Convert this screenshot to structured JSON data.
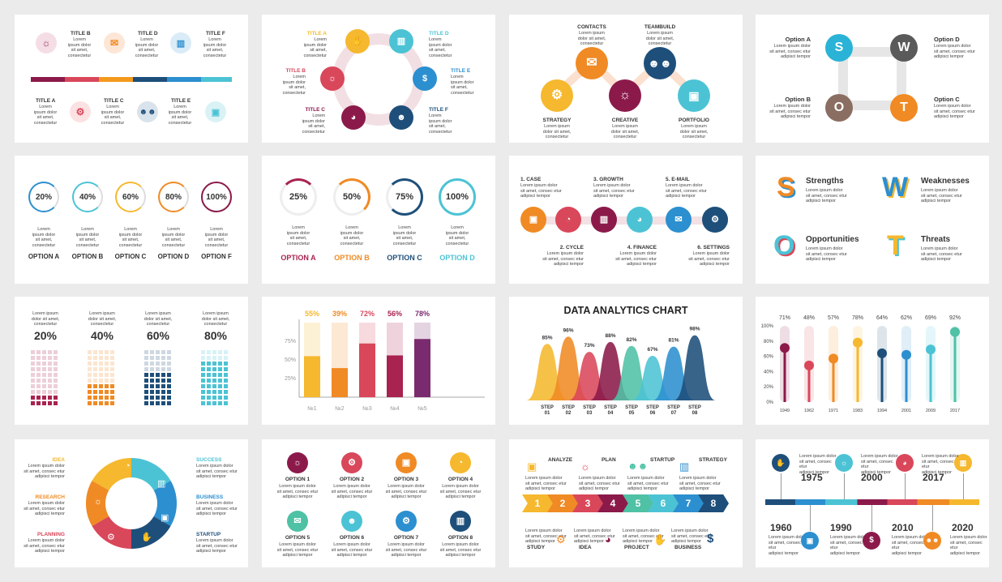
{
  "lorem3": "Lorem\nipsum dolor\nsit amet,\nconsectetur",
  "lorem4": "Lorem\nipsum dolor\nsit amet,\nconsectetur",
  "lorem_short": "Lorem ipsum\ndolor sit amet,\nconsectetur",
  "lorem_long": "Lorem ipsum dolor\nsit amet, consec etur\nadipisci tempor",
  "p1": {
    "top": [
      "TITLE B",
      "TITLE D",
      "TITLE F"
    ],
    "bottom": [
      "TITLE A",
      "TITLE C",
      "TITLE E"
    ],
    "colors": [
      "#8b1a4a",
      "#d9475a",
      "#f39a1e",
      "#1e4f7a",
      "#2c8fcf",
      "#4cc3d4"
    ]
  },
  "p2": {
    "labels": [
      "TITLE A",
      "TITLE B",
      "TITLE C",
      "TITLE D",
      "TITLE E",
      "TITLE F"
    ]
  },
  "p3": {
    "labels": [
      "CONTACTS",
      "TEAMBUILD",
      "STRATEGY",
      "CREATIVE",
      "PORTFOLIO"
    ]
  },
  "p4": {
    "options": [
      "Option A",
      "Option D",
      "Option B",
      "Option C"
    ],
    "letters": [
      "S",
      "W",
      "O",
      "T"
    ]
  },
  "p5": {
    "values": [
      "20%",
      "40%",
      "60%",
      "80%",
      "100%"
    ],
    "options": [
      "OPTION A",
      "OPTION B",
      "OPTION C",
      "OPTION D",
      "OPTION F"
    ],
    "colors": [
      "#2c8fcf",
      "#4cc3d4",
      "#f5b82e",
      "#f08a24",
      "#8b1a4a"
    ]
  },
  "p6": {
    "values": [
      "25%",
      "50%",
      "75%",
      "100%"
    ],
    "options": [
      "OPTION A",
      "OPTION B",
      "OPTION C",
      "OPTION D"
    ],
    "colors": [
      "#a8234f",
      "#f08a24",
      "#1e4f7a",
      "#4cc3d4"
    ]
  },
  "p7": {
    "top": [
      "1. CASE",
      "3. GROWTH",
      "5. E-MAIL"
    ],
    "bottom": [
      "2. CYCLE",
      "4. FINANCE",
      "6. SETTINGS"
    ],
    "colors": [
      "#f08a24",
      "#d9475a",
      "#8b1a4a",
      "#4cc3d4",
      "#2c8fcf",
      "#1e4f7a"
    ]
  },
  "p8": {
    "words": [
      "Strengths",
      "Weaknesses",
      "Opportunities",
      "Threats"
    ],
    "letters": [
      "S",
      "W",
      "O",
      "T"
    ]
  },
  "p9": {
    "values": [
      "20%",
      "40%",
      "60%",
      "80%"
    ],
    "levels": [
      0.2,
      0.4,
      0.6,
      0.8
    ],
    "colors": [
      "#a8234f",
      "#f08a24",
      "#1e4f7a",
      "#4cc3d4"
    ]
  },
  "chart_data": [
    {
      "type": "bar",
      "categories": [
        "№1",
        "№2",
        "№3",
        "№4",
        "№5"
      ],
      "values": [
        55,
        39,
        72,
        56,
        78
      ],
      "labels": [
        "55%",
        "39%",
        "72%",
        "56%",
        "78%"
      ],
      "yticks": [
        "75%",
        "50%",
        "25%"
      ],
      "ylim": [
        0,
        100
      ],
      "colors": [
        "#f5b82e",
        "#f08a24",
        "#d9475a",
        "#a8234f",
        "#7a2a6e"
      ]
    },
    {
      "type": "area",
      "title": "DATA ANALYTICS CHART",
      "categories": [
        "STEP 01",
        "STEP 02",
        "STEP 03",
        "STEP 04",
        "STEP 05",
        "STEP 06",
        "STEP 07",
        "STEP 08"
      ],
      "values": [
        85,
        96,
        73,
        88,
        82,
        67,
        81,
        98
      ],
      "labels": [
        "85%",
        "96%",
        "73%",
        "88%",
        "82%",
        "67%",
        "81%",
        "98%"
      ],
      "ylim": [
        0,
        100
      ],
      "colors": [
        "#f5b82e",
        "#f08a24",
        "#d9475a",
        "#8b1a4a",
        "#4fc1a5",
        "#4cc3d4",
        "#2c8fcf",
        "#1e4f7a"
      ]
    },
    {
      "type": "scatter",
      "categories": [
        "1949",
        "1962",
        "1971",
        "1983",
        "1994",
        "2001",
        "2009",
        "2017"
      ],
      "values": [
        71,
        48,
        57,
        78,
        64,
        62,
        69,
        92
      ],
      "labels": [
        "71%",
        "48%",
        "57%",
        "78%",
        "64%",
        "62%",
        "69%",
        "92%"
      ],
      "yticks": [
        "100%",
        "80%",
        "60%",
        "40%",
        "20%",
        "0%"
      ],
      "ylim": [
        0,
        100
      ],
      "colors": [
        "#8b1a4a",
        "#d9475a",
        "#f08a24",
        "#f5b82e",
        "#1e4f7a",
        "#2c8fcf",
        "#4cc3d4",
        "#4fc1a5"
      ]
    }
  ],
  "p13": {
    "left": [
      "IDEA",
      "RESEARCH",
      "PLANNING"
    ],
    "right": [
      "SUCCESS",
      "BUSINESS",
      "STARTUP"
    ]
  },
  "p14": {
    "options": [
      "OPTION 1",
      "OPTION 2",
      "OPTION 3",
      "OPTION 4",
      "OPTION 5",
      "OPTION 6",
      "OPTION 7",
      "OPTION 8"
    ],
    "colors": [
      "#8b1a4a",
      "#d9475a",
      "#f08a24",
      "#f5b82e",
      "#4fc1a5",
      "#4cc3d4",
      "#2c8fcf",
      "#1e4f7a"
    ]
  },
  "p15": {
    "top": [
      "ANALYZE",
      "PLAN",
      "STARTUP",
      "STRATEGY"
    ],
    "bottom": [
      "STUDY",
      "IDEA",
      "PROJECT",
      "BUSINESS"
    ],
    "nums": [
      "1",
      "2",
      "3",
      "4",
      "5",
      "6",
      "7",
      "8"
    ],
    "colors": [
      "#f5b82e",
      "#f08a24",
      "#d9475a",
      "#8b1a4a",
      "#4fc1a5",
      "#4cc3d4",
      "#2c8fcf",
      "#1e4f7a"
    ]
  },
  "p16": {
    "top": [
      "1975",
      "2000",
      "2017"
    ],
    "bottom": [
      "1960",
      "1990",
      "2010",
      "2020"
    ],
    "colors": [
      "#1e4f7a",
      "#2c8fcf",
      "#4cc3d4",
      "#8b1a4a",
      "#d9475a",
      "#f08a24",
      "#f5b82e"
    ]
  }
}
